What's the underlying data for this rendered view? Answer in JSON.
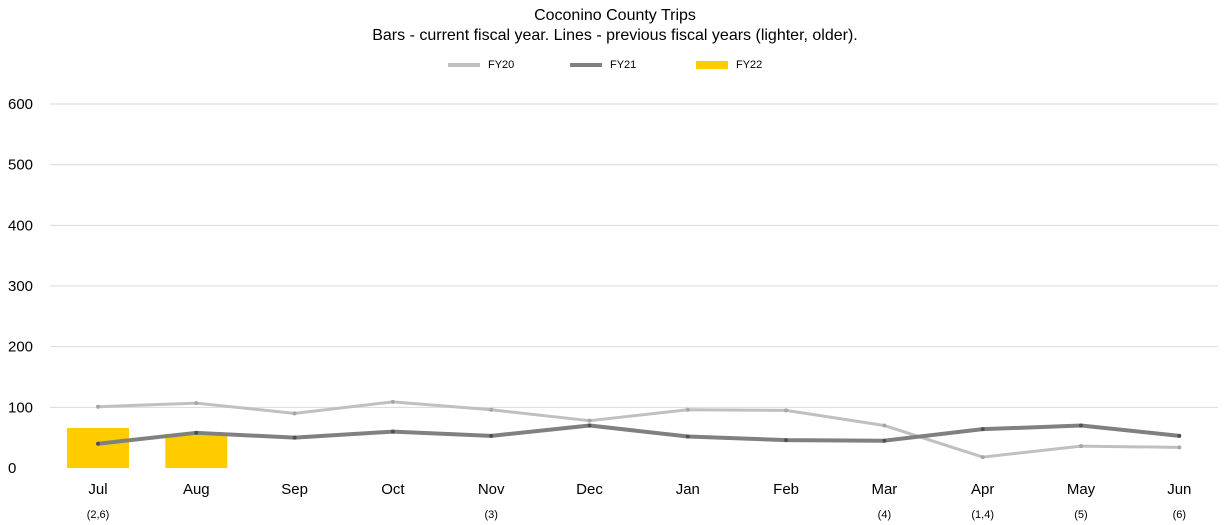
{
  "chart_data": {
    "type": "bar",
    "title": "Coconino County Trips",
    "subtitle": "Bars - current fiscal year. Lines - previous fiscal years (lighter, older).",
    "categories": [
      "Jul",
      "Aug",
      "Sep",
      "Oct",
      "Nov",
      "Dec",
      "Jan",
      "Feb",
      "Mar",
      "Apr",
      "May",
      "Jun"
    ],
    "category_notes": [
      "(2,6)",
      "",
      "",
      "",
      "(3)",
      "",
      "",
      "",
      "(4)",
      "(1,4)",
      "(5)",
      "(6)"
    ],
    "ylim": [
      0,
      600
    ],
    "yticks": [
      0,
      100,
      200,
      300,
      400,
      500,
      600
    ],
    "grid": true,
    "legend_position": "top-center",
    "series": [
      {
        "name": "FY20",
        "kind": "line",
        "color": "#c0c0c0",
        "values": [
          101,
          107,
          90,
          109,
          96,
          78,
          96,
          95,
          70,
          18,
          36,
          34
        ]
      },
      {
        "name": "FY21",
        "kind": "line",
        "color": "#808080",
        "values": [
          40,
          58,
          50,
          60,
          53,
          70,
          52,
          46,
          45,
          64,
          70,
          53
        ]
      },
      {
        "name": "FY22",
        "kind": "bar",
        "color": "#ffcc00",
        "values": [
          66,
          56,
          null,
          null,
          null,
          null,
          null,
          null,
          null,
          null,
          null,
          null
        ]
      }
    ]
  }
}
